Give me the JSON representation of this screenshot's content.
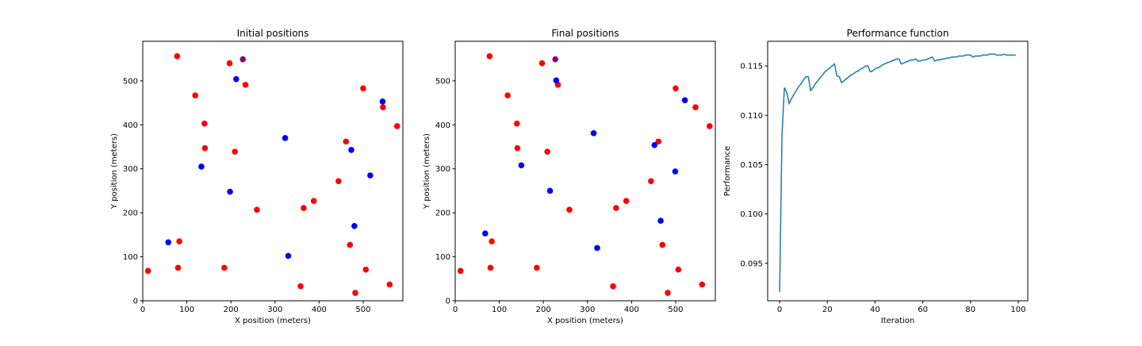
{
  "chart_data": [
    {
      "type": "scatter",
      "title": "Initial positions",
      "xlabel": "X position (meters)",
      "ylabel": "Y position (meters)",
      "xlim": [
        0,
        590
      ],
      "ylim": [
        0,
        590
      ],
      "xticks": [
        0,
        100,
        200,
        300,
        400,
        500
      ],
      "yticks": [
        0,
        100,
        200,
        300,
        400,
        500
      ],
      "grid": false,
      "series": [
        {
          "color": "#ff0000",
          "points": [
            [
              78,
              556
            ],
            [
              197,
              540
            ],
            [
              233,
              491
            ],
            [
              119,
              467
            ],
            [
              140,
              403
            ],
            [
              141,
              347
            ],
            [
              209,
              339
            ],
            [
              500,
              483
            ],
            [
              545,
              440
            ],
            [
              577,
              397
            ],
            [
              461,
              362
            ],
            [
              444,
              272
            ],
            [
              388,
              227
            ],
            [
              365,
              211
            ],
            [
              259,
              207
            ],
            [
              83,
              135
            ],
            [
              12,
              68
            ],
            [
              80,
              75
            ],
            [
              185,
              75
            ],
            [
              470,
              127
            ],
            [
              506,
              71
            ],
            [
              358,
              33
            ],
            [
              482,
              18
            ],
            [
              560,
              37
            ]
          ]
        },
        {
          "color": "#0000ff",
          "points": [
            [
              212,
              504
            ],
            [
              544,
              453
            ],
            [
              323,
              370
            ],
            [
              473,
              343
            ],
            [
              133,
              305
            ],
            [
              516,
              285
            ],
            [
              198,
              248
            ],
            [
              480,
              170
            ],
            [
              58,
              133
            ],
            [
              330,
              102
            ]
          ]
        },
        {
          "color": "#800080",
          "points": [
            [
              227,
              549
            ]
          ]
        }
      ]
    },
    {
      "type": "scatter",
      "title": "Final positions",
      "xlabel": "X position (meters)",
      "ylabel": "Y position (meters)",
      "xlim": [
        0,
        590
      ],
      "ylim": [
        0,
        590
      ],
      "xticks": [
        0,
        100,
        200,
        300,
        400,
        500
      ],
      "yticks": [
        0,
        100,
        200,
        300,
        400,
        500
      ],
      "grid": false,
      "series": [
        {
          "color": "#ff0000",
          "points": [
            [
              78,
              556
            ],
            [
              197,
              540
            ],
            [
              233,
              491
            ],
            [
              119,
              467
            ],
            [
              140,
              403
            ],
            [
              141,
              347
            ],
            [
              209,
              339
            ],
            [
              500,
              483
            ],
            [
              545,
              440
            ],
            [
              577,
              397
            ],
            [
              461,
              362
            ],
            [
              444,
              272
            ],
            [
              388,
              227
            ],
            [
              365,
              211
            ],
            [
              259,
              207
            ],
            [
              83,
              135
            ],
            [
              12,
              68
            ],
            [
              80,
              75
            ],
            [
              185,
              75
            ],
            [
              470,
              127
            ],
            [
              506,
              71
            ],
            [
              358,
              33
            ],
            [
              482,
              18
            ],
            [
              560,
              37
            ]
          ]
        },
        {
          "color": "#0000ff",
          "points": [
            [
              229,
              501
            ],
            [
              521,
              456
            ],
            [
              314,
              381
            ],
            [
              452,
              354
            ],
            [
              150,
              308
            ],
            [
              499,
              294
            ],
            [
              215,
              250
            ],
            [
              466,
              182
            ],
            [
              68,
              153
            ],
            [
              322,
              120
            ]
          ]
        },
        {
          "color": "#800080",
          "points": [
            [
              227,
              549
            ]
          ]
        }
      ]
    },
    {
      "type": "line",
      "title": "Performance function",
      "xlabel": "Iteration",
      "ylabel": "Performance",
      "xlim": [
        -5,
        104
      ],
      "ylim": [
        0.0912,
        0.1175
      ],
      "xticks": [
        0,
        20,
        40,
        60,
        80,
        100
      ],
      "yticks": [
        0.095,
        0.1,
        0.105,
        0.11,
        0.115
      ],
      "ytick_labels": [
        "0.095",
        "0.100",
        "0.105",
        "0.110",
        "0.115"
      ],
      "grid": false,
      "color": "#1f77b4",
      "series": [
        {
          "x": [
            0,
            1,
            2,
            3,
            4,
            5,
            6,
            7,
            8,
            9,
            10,
            11,
            12,
            13,
            14,
            15,
            16,
            17,
            18,
            19,
            20,
            21,
            22,
            23,
            24,
            25,
            26,
            27,
            28,
            29,
            30,
            31,
            32,
            33,
            34,
            35,
            36,
            37,
            38,
            39,
            40,
            41,
            42,
            43,
            44,
            45,
            46,
            47,
            48,
            49,
            50,
            51,
            52,
            53,
            54,
            55,
            56,
            57,
            58,
            59,
            60,
            61,
            62,
            63,
            64,
            65,
            66,
            67,
            68,
            69,
            70,
            71,
            72,
            73,
            74,
            75,
            76,
            77,
            78,
            79,
            80,
            81,
            82,
            83,
            84,
            85,
            86,
            87,
            88,
            89,
            90,
            91,
            92,
            93,
            94,
            95,
            96,
            97,
            98,
            99
          ],
          "y": [
            0.0921,
            0.108,
            0.1128,
            0.1123,
            0.1112,
            0.1117,
            0.1121,
            0.1125,
            0.1129,
            0.1132,
            0.1136,
            0.1139,
            0.1139,
            0.1125,
            0.1128,
            0.1132,
            0.1135,
            0.1138,
            0.1141,
            0.1144,
            0.1146,
            0.1148,
            0.115,
            0.1152,
            0.114,
            0.1139,
            0.1133,
            0.1135,
            0.1137,
            0.1139,
            0.1141,
            0.1142,
            0.1144,
            0.1145,
            0.1147,
            0.1148,
            0.115,
            0.115,
            0.1144,
            0.1145,
            0.1147,
            0.1148,
            0.1149,
            0.1151,
            0.1152,
            0.1153,
            0.1154,
            0.1155,
            0.1156,
            0.1157,
            0.1157,
            0.1152,
            0.1153,
            0.1154,
            0.1155,
            0.1156,
            0.1156,
            0.1157,
            0.1155,
            0.1155,
            0.1156,
            0.1156,
            0.1157,
            0.1158,
            0.1159,
            0.1155,
            0.1156,
            0.1156,
            0.1157,
            0.1157,
            0.1158,
            0.1158,
            0.1159,
            0.1159,
            0.1159,
            0.116,
            0.116,
            0.116,
            0.1161,
            0.1161,
            0.1161,
            0.1159,
            0.116,
            0.116,
            0.116,
            0.1161,
            0.1161,
            0.1161,
            0.1162,
            0.1162,
            0.1162,
            0.1161,
            0.1161,
            0.1161,
            0.1162,
            0.1161,
            0.1161,
            0.1161,
            0.1161,
            0.1161
          ]
        }
      ]
    }
  ]
}
